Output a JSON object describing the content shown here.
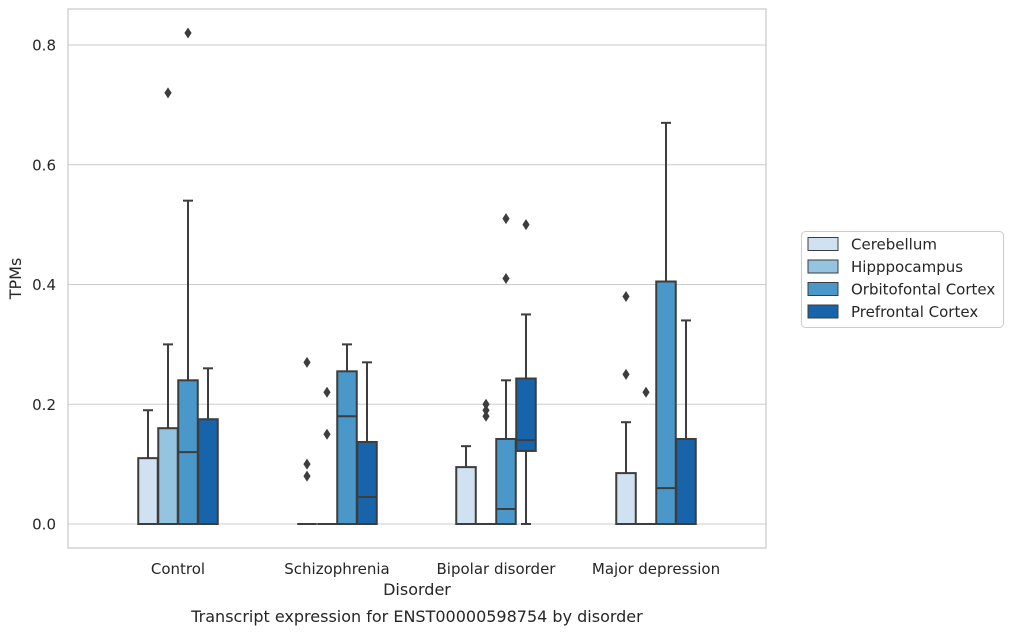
{
  "chart_data": {
    "type": "box",
    "caption": "Transcript expression for ENST00000598754 by disorder",
    "xlabel": "Disorder",
    "ylabel": "TPMs",
    "ylim": [
      -0.04,
      0.862
    ],
    "yticks": [
      0.0,
      0.2,
      0.4,
      0.6,
      0.8
    ],
    "ytick_labels": [
      "0.0",
      "0.2",
      "0.4",
      "0.6",
      "0.8"
    ],
    "grid": true,
    "legend_position": "right",
    "categories": [
      "Control",
      "Schizophrenia",
      "Bipolar disorder",
      "Major depression"
    ],
    "series": [
      {
        "name": "Cerebellum",
        "color": "#d0e1f2",
        "boxes": [
          {
            "q1": 0.0,
            "median": 0.0,
            "q3": 0.11,
            "whislo": 0.0,
            "whishi": 0.19,
            "fliers": []
          },
          {
            "q1": 0.0,
            "median": 0.0,
            "q3": 0.0,
            "whislo": 0.0,
            "whishi": 0.0,
            "fliers": [
              0.08,
              0.1,
              0.27
            ]
          },
          {
            "q1": 0.0,
            "median": 0.0,
            "q3": 0.095,
            "whislo": 0.0,
            "whishi": 0.13,
            "fliers": []
          },
          {
            "q1": 0.0,
            "median": 0.0,
            "q3": 0.085,
            "whislo": 0.0,
            "whishi": 0.17,
            "fliers": [
              0.25,
              0.38
            ]
          }
        ]
      },
      {
        "name": "Hipppocampus",
        "color": "#94c4df",
        "boxes": [
          {
            "q1": 0.0,
            "median": 0.0,
            "q3": 0.16,
            "whislo": 0.0,
            "whishi": 0.3,
            "fliers": [
              0.72
            ]
          },
          {
            "q1": 0.0,
            "median": 0.0,
            "q3": 0.0,
            "whislo": 0.0,
            "whishi": 0.0,
            "fliers": [
              0.15,
              0.22
            ]
          },
          {
            "q1": 0.0,
            "median": 0.0,
            "q3": 0.0,
            "whislo": 0.0,
            "whishi": 0.0,
            "fliers": [
              0.18,
              0.19,
              0.2
            ]
          },
          {
            "q1": 0.0,
            "median": 0.0,
            "q3": 0.0,
            "whislo": 0.0,
            "whishi": 0.0,
            "fliers": [
              0.22
            ]
          }
        ]
      },
      {
        "name": "Orbitofontal Cortex",
        "color": "#4a98c9",
        "boxes": [
          {
            "q1": 0.0,
            "median": 0.12,
            "q3": 0.24,
            "whislo": 0.0,
            "whishi": 0.54,
            "fliers": [
              0.82
            ]
          },
          {
            "q1": 0.0,
            "median": 0.18,
            "q3": 0.255,
            "whislo": 0.0,
            "whishi": 0.3,
            "fliers": []
          },
          {
            "q1": 0.0,
            "median": 0.025,
            "q3": 0.142,
            "whislo": 0.0,
            "whishi": 0.24,
            "fliers": [
              0.41,
              0.51
            ]
          },
          {
            "q1": 0.0,
            "median": 0.06,
            "q3": 0.405,
            "whislo": 0.0,
            "whishi": 0.67,
            "fliers": []
          }
        ]
      },
      {
        "name": "Prefrontal Cortex",
        "color": "#1764ab",
        "boxes": [
          {
            "q1": 0.0,
            "median": 0.0,
            "q3": 0.175,
            "whislo": 0.0,
            "whishi": 0.26,
            "fliers": []
          },
          {
            "q1": 0.0,
            "median": 0.045,
            "q3": 0.137,
            "whislo": 0.0,
            "whishi": 0.27,
            "fliers": []
          },
          {
            "q1": 0.122,
            "median": 0.14,
            "q3": 0.243,
            "whislo": 0.0,
            "whishi": 0.35,
            "fliers": [
              0.5
            ]
          },
          {
            "q1": 0.0,
            "median": 0.0,
            "q3": 0.142,
            "whislo": 0.0,
            "whishi": 0.34,
            "fliers": []
          }
        ]
      }
    ]
  }
}
